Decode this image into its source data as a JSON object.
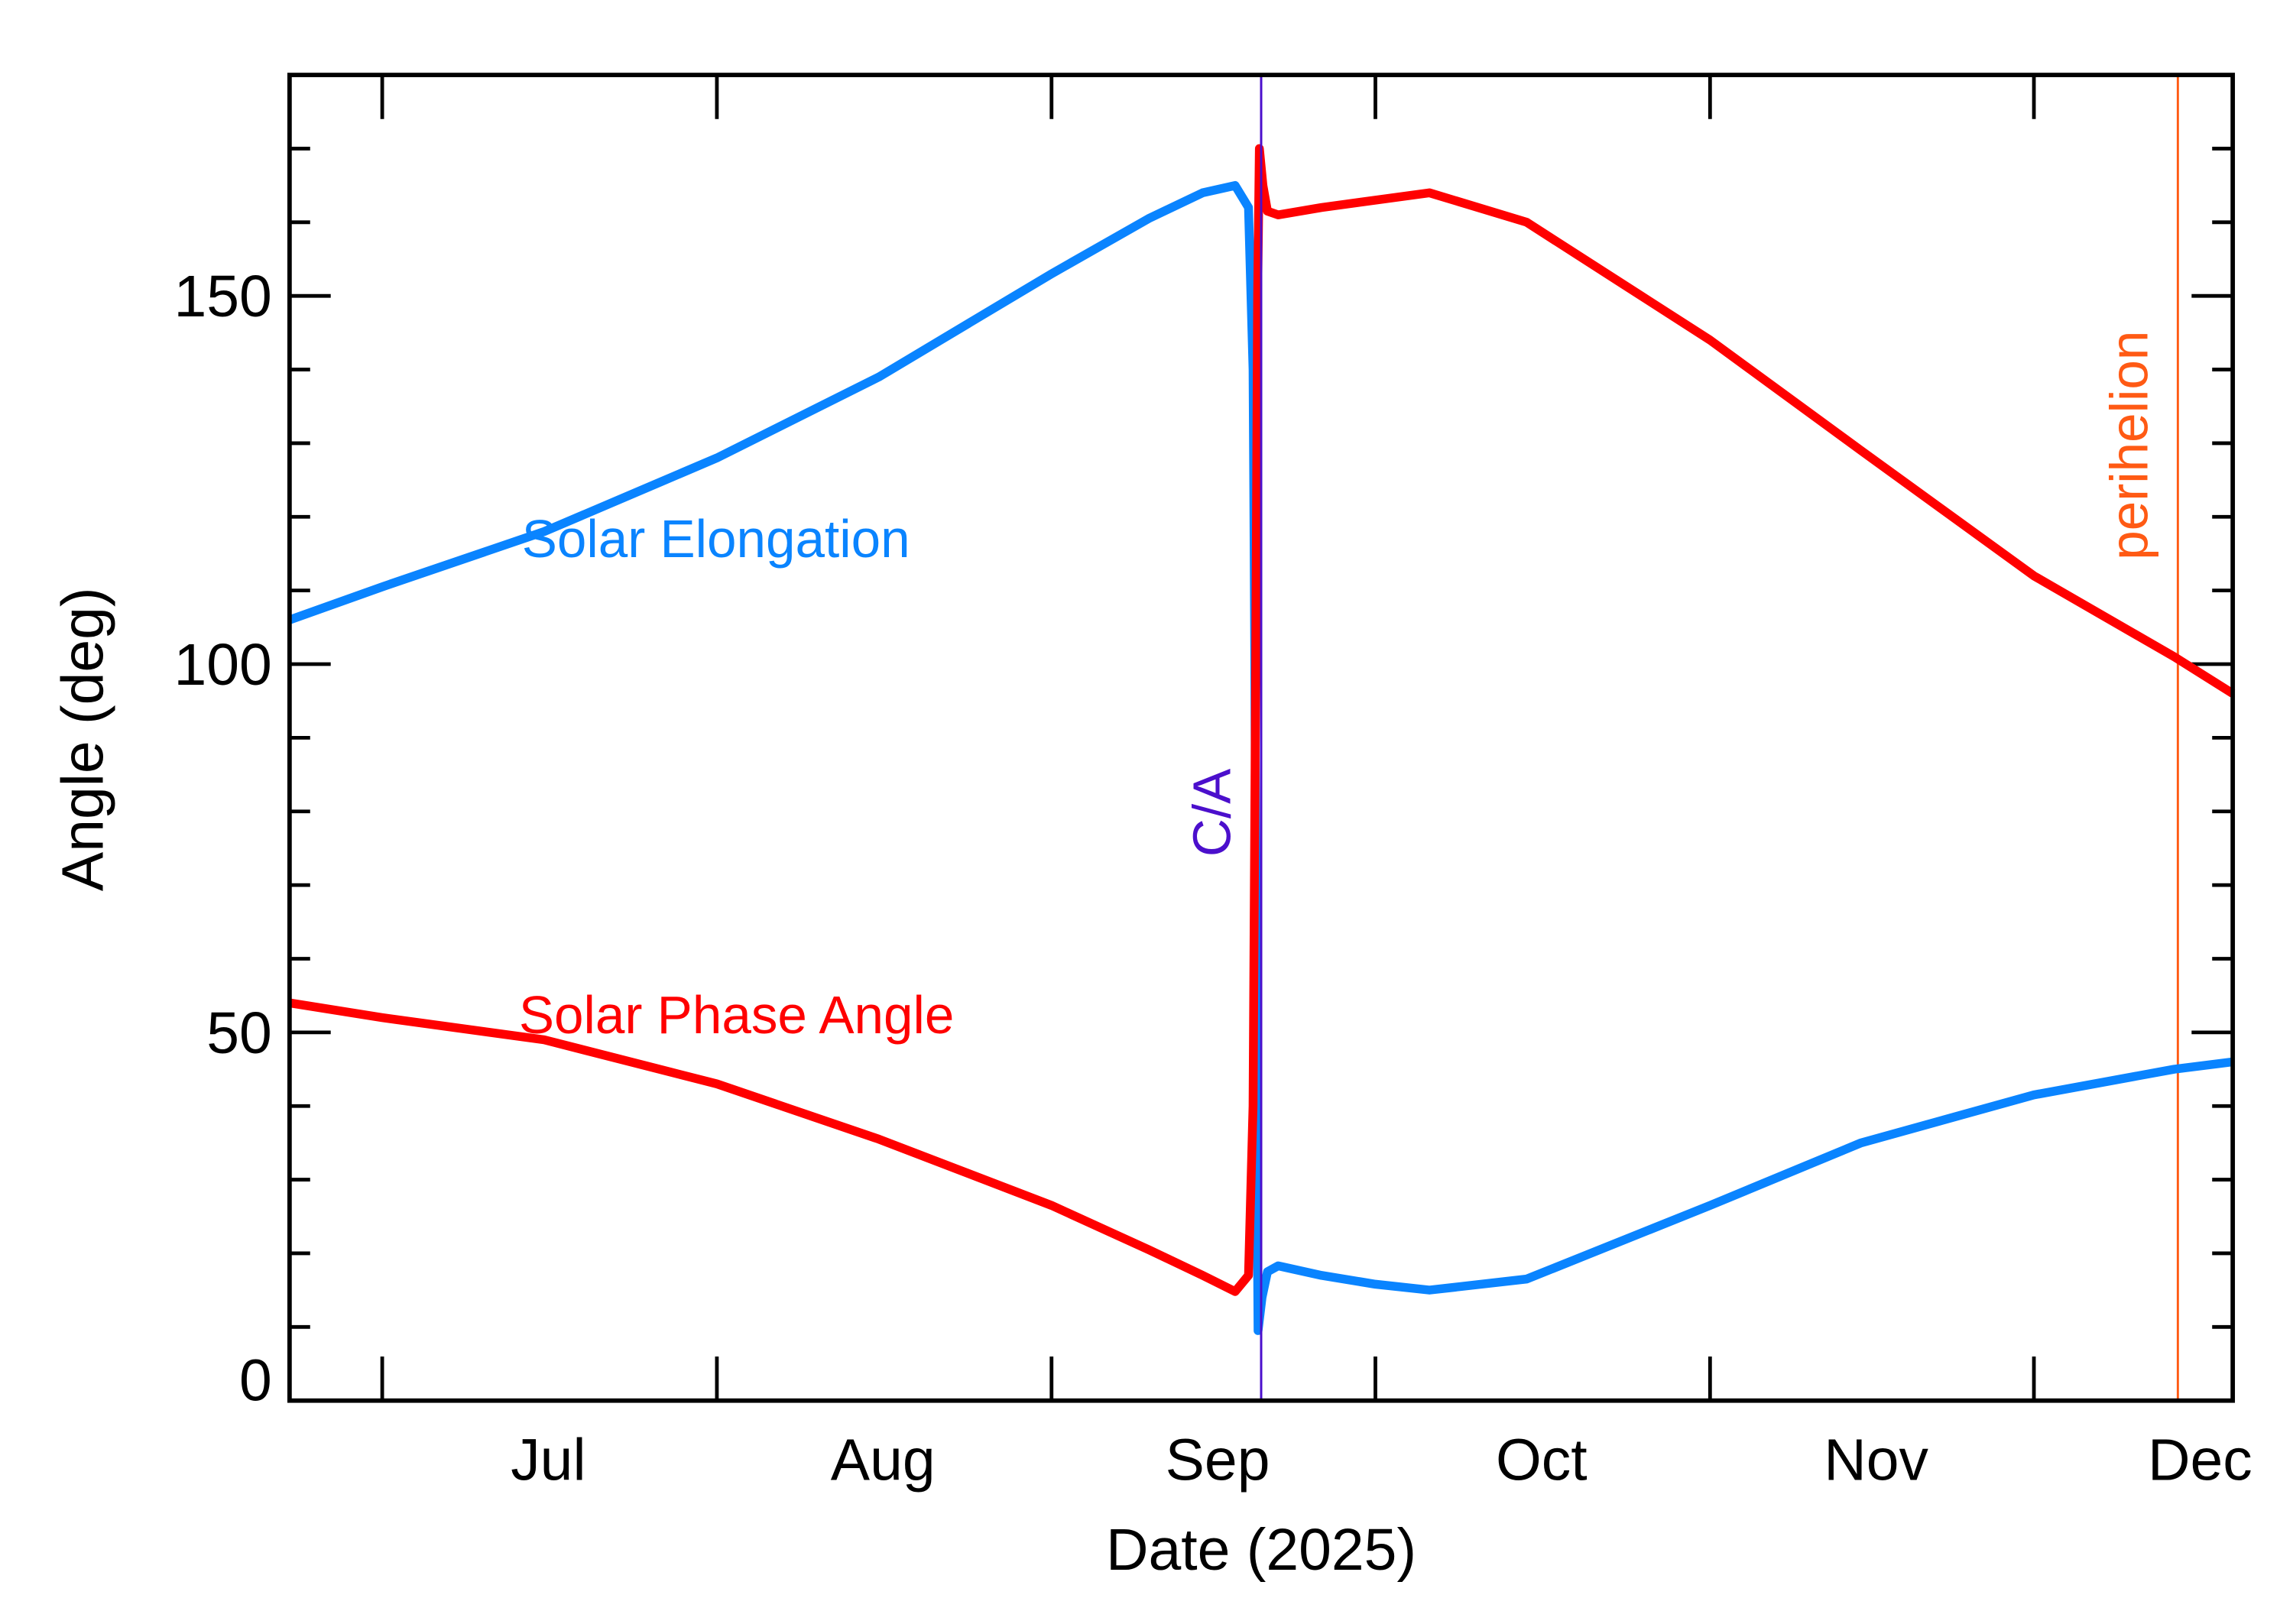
{
  "chart_data": {
    "type": "line",
    "xlabel": "Date (2025)",
    "ylabel": "Angle (deg)",
    "xlim": [
      "2025-06-22T10:00",
      "2025-12-19T10:00"
    ],
    "ylim": [
      0,
      180
    ],
    "x_ticks": [
      {
        "date": "2025-07-01",
        "label": "Jul"
      },
      {
        "date": "2025-08-01",
        "label": "Aug"
      },
      {
        "date": "2025-09-01",
        "label": "Sep"
      },
      {
        "date": "2025-10-01",
        "label": "Oct"
      },
      {
        "date": "2025-11-01",
        "label": "Nov"
      },
      {
        "date": "2025-12-01",
        "label": "Dec"
      }
    ],
    "y_ticks": [
      0,
      50,
      100,
      150
    ],
    "y_minor_step": 10,
    "grid": false,
    "series": [
      {
        "name": "Solar Elongation",
        "color": "#0a84ff",
        "points": [
          [
            "2025-06-22T10:00",
            106
          ],
          [
            "2025-07-01",
            110.5
          ],
          [
            "2025-07-16",
            118
          ],
          [
            "2025-08-01",
            128
          ],
          [
            "2025-08-16",
            139
          ],
          [
            "2025-09-01",
            153
          ],
          [
            "2025-09-10",
            160.5
          ],
          [
            "2025-09-15",
            164
          ],
          [
            "2025-09-18",
            165
          ],
          [
            "2025-09-19T06:00",
            162
          ],
          [
            "2025-09-19T16:00",
            140
          ],
          [
            "2025-09-19T20:00",
            100
          ],
          [
            "2025-09-20T00:00",
            40
          ],
          [
            "2025-09-20T03:00",
            9.5
          ],
          [
            "2025-09-20T12:00",
            14
          ],
          [
            "2025-09-21",
            17.5
          ],
          [
            "2025-09-22",
            18.3
          ],
          [
            "2025-09-26",
            17
          ],
          [
            "2025-10-01",
            15.8
          ],
          [
            "2025-10-06",
            15
          ],
          [
            "2025-10-15",
            16.5
          ],
          [
            "2025-11-01",
            26.5
          ],
          [
            "2025-11-15",
            35
          ],
          [
            "2025-12-01",
            41.5
          ],
          [
            "2025-12-14",
            45
          ],
          [
            "2025-12-19T10:00",
            46
          ]
        ]
      },
      {
        "name": "Solar Phase Angle",
        "color": "#ff0000",
        "points": [
          [
            "2025-06-22T10:00",
            54
          ],
          [
            "2025-07-01",
            52
          ],
          [
            "2025-07-16",
            49
          ],
          [
            "2025-08-01",
            43
          ],
          [
            "2025-08-16",
            35.5
          ],
          [
            "2025-09-01",
            26.5
          ],
          [
            "2025-09-10",
            20.5
          ],
          [
            "2025-09-15",
            17
          ],
          [
            "2025-09-18",
            14.8
          ],
          [
            "2025-09-19T06:00",
            17
          ],
          [
            "2025-09-19T16:00",
            40
          ],
          [
            "2025-09-19T22:00",
            100
          ],
          [
            "2025-09-20T02:00",
            150
          ],
          [
            "2025-09-20T06:00",
            170
          ],
          [
            "2025-09-20T14:00",
            165
          ],
          [
            "2025-09-21",
            161.5
          ],
          [
            "2025-09-22",
            161
          ],
          [
            "2025-09-26",
            162
          ],
          [
            "2025-10-06",
            164
          ],
          [
            "2025-10-15",
            160
          ],
          [
            "2025-11-01",
            144
          ],
          [
            "2025-11-15",
            129
          ],
          [
            "2025-12-01",
            112
          ],
          [
            "2025-12-14",
            101
          ],
          [
            "2025-12-19T10:00",
            96
          ]
        ]
      }
    ],
    "annotations": [
      {
        "label": "Solar Elongation",
        "color": "#0a84ff"
      },
      {
        "label": "Solar Phase Angle",
        "color": "#ff0000"
      },
      {
        "label": "C/A",
        "date": "2025-09-20T10:00",
        "color": "#4b0fcc"
      },
      {
        "label": "perihelion",
        "date": "2025-12-14T08:00",
        "color": "#ff5a14"
      }
    ]
  }
}
